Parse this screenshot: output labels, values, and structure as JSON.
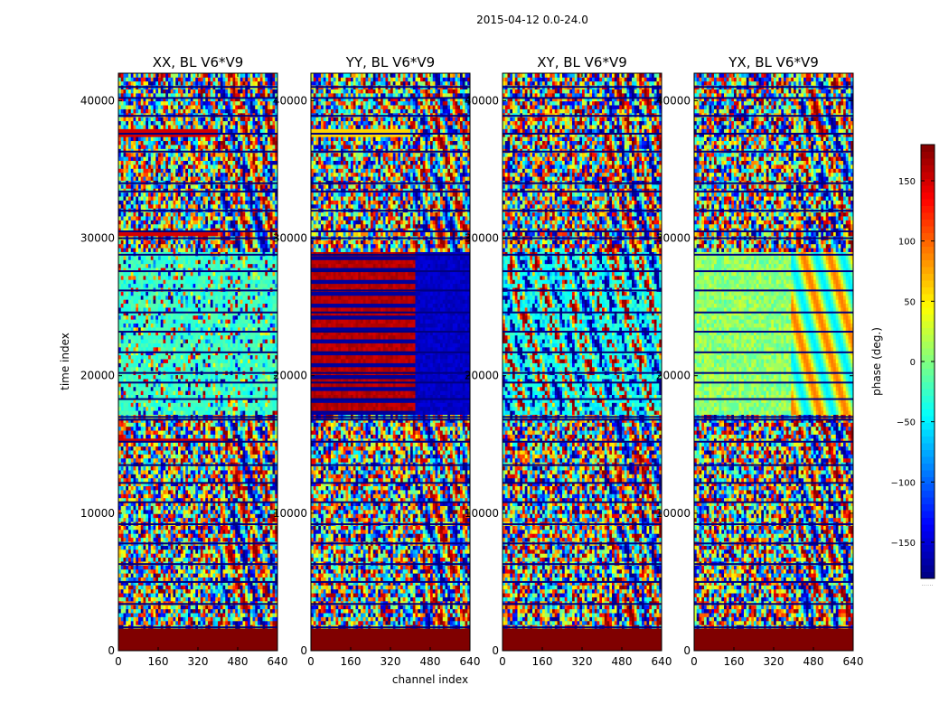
{
  "suptitle": "2015-04-12 0.0-24.0",
  "xlabel": "channel index",
  "ylabel": "time index",
  "colorbar": {
    "label": "phase (deg.)",
    "range": [
      -180,
      180
    ],
    "ticks": [
      -150,
      -100,
      -50,
      0,
      50,
      100,
      150
    ],
    "tick_labels": [
      "−150",
      "−100",
      "−50",
      "0",
      "50",
      "100",
      "150"
    ],
    "extra_label": "......"
  },
  "chart_data": {
    "type": "heatmap",
    "colormap": "jet",
    "value_range": [
      -180,
      180
    ],
    "xlim": [
      0,
      640
    ],
    "ylim": [
      0,
      42000
    ],
    "x_ticks": [
      0,
      160,
      320,
      480,
      640
    ],
    "x_tick_labels": [
      "0",
      "160",
      "320",
      "480",
      "640"
    ],
    "y_ticks": [
      0,
      10000,
      20000,
      30000,
      40000
    ],
    "y_tick_labels": [
      "0",
      "10000",
      "20000",
      "30000",
      "40000"
    ],
    "panels": [
      {
        "title": "XX, BL V6*V9",
        "mode": "XX"
      },
      {
        "title": "YY, BL V6*V9",
        "mode": "YY"
      },
      {
        "title": "XY, BL V6*V9",
        "mode": "XY"
      },
      {
        "title": "YX, BL V6*V9",
        "mode": "YX"
      }
    ],
    "bottom_block": {
      "y_range": [
        0,
        1600
      ],
      "phase": 180
    },
    "gap_rows": [
      1700,
      3400,
      5000,
      6300,
      7800,
      9200,
      10800,
      12200,
      13500,
      15200,
      16800,
      17000,
      18300,
      19500,
      20200,
      21700,
      23200,
      24600,
      26200,
      27600,
      28800,
      30000,
      30500,
      32000,
      33400,
      34000,
      36300,
      37600,
      38900,
      40200,
      41000
    ]
  }
}
